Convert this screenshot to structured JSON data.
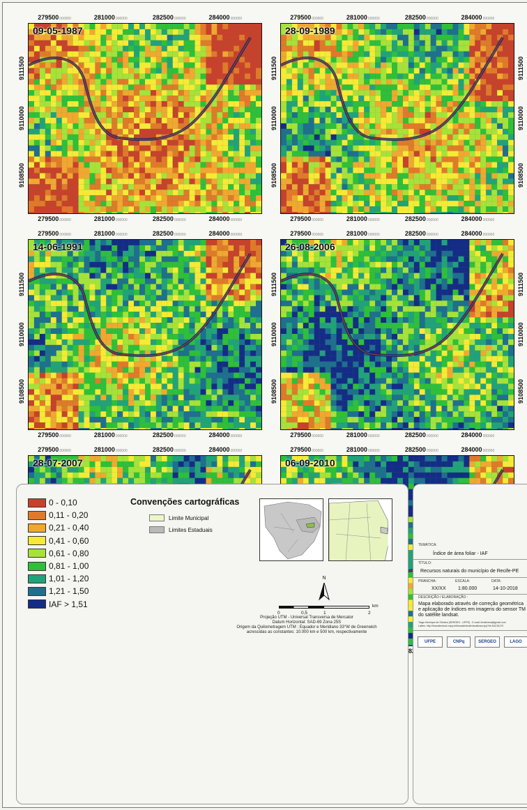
{
  "panels": [
    {
      "date": "09-05-1987",
      "veg": 0.35,
      "seed": 11
    },
    {
      "date": "28-09-1989",
      "veg": 0.5,
      "seed": 23
    },
    {
      "date": "14-06-1991",
      "veg": 0.62,
      "seed": 37
    },
    {
      "date": "26-08-2006",
      "veg": 0.72,
      "seed": 41
    },
    {
      "date": "28-07-2007",
      "veg": 0.7,
      "seed": 53
    },
    {
      "date": "06-09-2010",
      "veg": 0.78,
      "seed": 67
    }
  ],
  "grid": {
    "x_ticks": [
      "279500",
      "281000",
      "282500",
      "284000"
    ],
    "x_suffix": "000000",
    "y_ticks": [
      "9111500",
      "9110000",
      "9108500"
    ]
  },
  "legend": {
    "classes": [
      {
        "label": "0 - 0,10",
        "color": "#c8412c"
      },
      {
        "label": "0,11 - 0,20",
        "color": "#e07a2a"
      },
      {
        "label": "0,21 - 0,40",
        "color": "#f0a830"
      },
      {
        "label": "0,41 - 0,60",
        "color": "#f6ea36"
      },
      {
        "label": "0,61 - 0,80",
        "color": "#a6e23a"
      },
      {
        "label": "0,81 - 1,00",
        "color": "#2fbf3a"
      },
      {
        "label": "1,01 - 1,20",
        "color": "#22a27a"
      },
      {
        "label": "1,21 - 1,50",
        "color": "#1f6f8e"
      },
      {
        "label": "IAF > 1,51",
        "color": "#152c87"
      }
    ]
  },
  "conventions": {
    "title": "Convenções cartográficas",
    "items": [
      {
        "label": "Limite Municipal",
        "color": "#eaf7c8"
      },
      {
        "label": "Limites Estaduais",
        "color": "#b9b9b9"
      }
    ]
  },
  "scalebar": {
    "ticks": [
      "0",
      "0,5",
      "1",
      "2"
    ],
    "unit": "km",
    "north": "N"
  },
  "projection": [
    "Projeção UTM - Universal Transversa de Mercator",
    "Datum Horizontal: SAD-69 Zona 25S",
    "Origem da Quilometragem UTM : Equador e Meridiano 33°W de Greenwich",
    "acrescidas as constantes: 10.000 km e 500 km, respectivamente"
  ],
  "title_block": {
    "tematica_label": "TEMÁTICA:",
    "tematica": "Índice de área foliar - IAF",
    "titulo_label": "TÍTULO:",
    "titulo": "Recursos naturais do município de Recife-PE",
    "prancha_label": "PRANCHA:",
    "prancha": "XX/XX",
    "escala_label": "ESCALA:",
    "escala": "1:80.000",
    "data_label": "DATA:",
    "data": "14-10-2018",
    "descricao_label": "DESCRIÇÃO / ELABORAÇÃO :",
    "descricao_1": "Mapa elaborado através de correção geométrica",
    "descricao_2": "e aplicação de índices em imagens do sensor TM",
    "descricao_3": "do satélite landsat.",
    "credit_1": "Tiago Henrique de Oliveira (SERGEO - UFPE) - E-mail: thrlolivesa@gmail.com",
    "credit_2": "Lattes: http://buscatextual.cnpq.br/buscatextual/visualizacv.jsp?id=K4216170",
    "logos": [
      "UFPE",
      "CNPq",
      "SERGEO",
      "LAGO"
    ]
  }
}
